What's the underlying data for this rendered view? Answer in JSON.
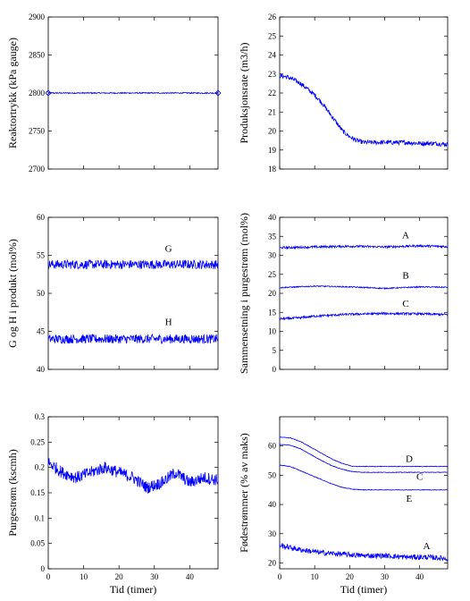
{
  "chart_data": [
    {
      "type": "line",
      "ylabel": "Reaktortrykk (kPa gauge)",
      "xlabel": "",
      "xlim": [
        0,
        48
      ],
      "ylim": [
        2700,
        2900
      ],
      "yticks": [
        2700,
        2750,
        2800,
        2850,
        2900
      ],
      "xticks": [],
      "annotations": [],
      "series": [
        {
          "x": [
            0,
            48
          ],
          "y": [
            2800,
            2800
          ],
          "noise": 0.8,
          "markers": "diamond-at-ends"
        }
      ]
    },
    {
      "type": "line",
      "ylabel": "Produksjonsrate (m3/h)",
      "xlabel": "",
      "xlim": [
        0,
        48
      ],
      "ylim": [
        18,
        26
      ],
      "yticks": [
        18,
        19,
        20,
        21,
        22,
        23,
        24,
        25,
        26
      ],
      "xticks": [],
      "annotations": [],
      "series": [
        {
          "x": [
            0,
            2,
            4,
            6,
            8,
            10,
            12,
            14,
            16,
            18,
            20,
            22,
            24,
            28,
            32,
            36,
            40,
            44,
            48
          ],
          "y": [
            22.9,
            22.85,
            22.7,
            22.5,
            22.2,
            21.9,
            21.5,
            21.0,
            20.5,
            20.0,
            19.7,
            19.5,
            19.4,
            19.4,
            19.4,
            19.4,
            19.35,
            19.35,
            19.3
          ],
          "noise": 0.12
        }
      ]
    },
    {
      "type": "line",
      "ylabel": "G og H i produkt (mol%)",
      "xlabel": "",
      "xlim": [
        0,
        48
      ],
      "ylim": [
        40,
        60
      ],
      "yticks": [
        40,
        45,
        50,
        55,
        60
      ],
      "xticks": [],
      "annotations": [
        {
          "text": "G",
          "x": 34,
          "y": 55.5
        },
        {
          "text": "H",
          "x": 34,
          "y": 45.8
        }
      ],
      "series": [
        {
          "x": [
            0,
            48
          ],
          "y": [
            53.8,
            53.8
          ],
          "noise": 0.6
        },
        {
          "x": [
            0,
            48
          ],
          "y": [
            44.0,
            44.0
          ],
          "noise": 0.6
        }
      ]
    },
    {
      "type": "line",
      "ylabel": "Sammensetning i purgestrøm (mol%)",
      "xlabel": "",
      "xlim": [
        0,
        48
      ],
      "ylim": [
        0,
        40
      ],
      "yticks": [
        0,
        5,
        10,
        15,
        20,
        25,
        30,
        35,
        40
      ],
      "xticks": [],
      "annotations": [
        {
          "text": "A",
          "x": 36,
          "y": 34.5
        },
        {
          "text": "B",
          "x": 36,
          "y": 23.9
        },
        {
          "text": "C",
          "x": 36,
          "y": 16.5
        }
      ],
      "series": [
        {
          "x": [
            0,
            10,
            20,
            30,
            40,
            48
          ],
          "y": [
            32.0,
            32.2,
            32.4,
            32.2,
            32.5,
            32.3
          ],
          "noise": 0.3
        },
        {
          "x": [
            0,
            10,
            20,
            30,
            40,
            48
          ],
          "y": [
            21.5,
            21.9,
            21.7,
            21.3,
            21.7,
            21.6
          ],
          "noise": 0.15
        },
        {
          "x": [
            0,
            5,
            10,
            20,
            30,
            40,
            48
          ],
          "y": [
            13.3,
            13.5,
            14.0,
            14.5,
            14.7,
            14.6,
            14.4
          ],
          "noise": 0.3
        }
      ]
    },
    {
      "type": "line",
      "ylabel": "Purgestrøm (kscmh)",
      "xlabel": "Tid (timer)",
      "xlim": [
        0,
        48
      ],
      "ylim": [
        0,
        0.3
      ],
      "yticks": [
        0,
        0.05,
        0.1,
        0.15,
        0.2,
        0.25,
        0.3
      ],
      "xticks": [
        0,
        10,
        20,
        30,
        40
      ],
      "annotations": [],
      "series": [
        {
          "x": [
            0,
            4,
            8,
            12,
            16,
            20,
            24,
            28,
            32,
            36,
            40,
            44,
            48
          ],
          "y": [
            0.21,
            0.19,
            0.18,
            0.19,
            0.2,
            0.19,
            0.18,
            0.16,
            0.17,
            0.19,
            0.17,
            0.18,
            0.175
          ],
          "noise": 0.012
        }
      ]
    },
    {
      "type": "line",
      "ylabel": "Fødestrømmer (% av maks)",
      "xlabel": "Tid (timer)",
      "xlim": [
        0,
        48
      ],
      "ylim": [
        18,
        70
      ],
      "yticks": [
        20,
        30,
        40,
        50,
        60
      ],
      "xticks": [
        0,
        10,
        20,
        30,
        40
      ],
      "annotations": [
        {
          "text": "D",
          "x": 37,
          "y": 54.5
        },
        {
          "text": "C",
          "x": 40,
          "y": 48.5
        },
        {
          "text": "E",
          "x": 37,
          "y": 41.0
        },
        {
          "text": "A",
          "x": 42,
          "y": 24.8
        }
      ],
      "series": [
        {
          "x": [
            0,
            3,
            6,
            9,
            12,
            15,
            18,
            21,
            24,
            30,
            40,
            48
          ],
          "y": [
            63,
            62.8,
            61.5,
            59.5,
            57.5,
            55.5,
            54,
            53,
            53,
            53,
            53,
            53
          ],
          "noise": 0.1
        },
        {
          "x": [
            0,
            3,
            6,
            9,
            12,
            15,
            18,
            21,
            24,
            30,
            40,
            48
          ],
          "y": [
            60.5,
            60.3,
            59,
            57,
            55,
            53.2,
            52,
            51.2,
            51,
            51,
            51,
            51
          ],
          "noise": 0.1
        },
        {
          "x": [
            0,
            3,
            6,
            9,
            12,
            15,
            18,
            21,
            24,
            30,
            40,
            48
          ],
          "y": [
            53.5,
            53,
            51.5,
            50,
            48.5,
            47,
            45.8,
            45.2,
            45,
            45,
            45,
            45
          ],
          "noise": 0.1
        },
        {
          "x": [
            0,
            6,
            12,
            18,
            24,
            30,
            36,
            42,
            48
          ],
          "y": [
            26,
            24.5,
            23.5,
            23,
            22.5,
            22.5,
            22,
            22,
            21.5
          ],
          "noise": 0.9
        }
      ]
    }
  ]
}
